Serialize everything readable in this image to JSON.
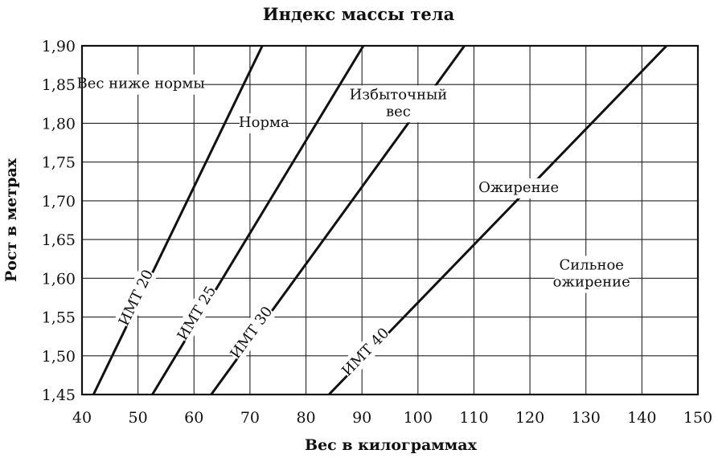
{
  "chart_data": {
    "type": "line",
    "title": "Индекс массы тела",
    "xlabel": "Вес в килограммах",
    "ylabel": "Рост в метрах",
    "xlim": [
      40,
      150
    ],
    "ylim": [
      1.45,
      1.9
    ],
    "x_ticks": [
      "40",
      "50",
      "60",
      "70",
      "80",
      "90",
      "100",
      "110",
      "120",
      "130",
      "140",
      "150"
    ],
    "y_ticks": [
      "1,45",
      "1,50",
      "1,55",
      "1,60",
      "1,65",
      "1,70",
      "1,75",
      "1,80",
      "1,85",
      "1,90"
    ],
    "grid": true,
    "series": [
      {
        "name": "ИМТ 20",
        "bmi": 20
      },
      {
        "name": "ИМТ 25",
        "bmi": 25
      },
      {
        "name": "ИМТ 30",
        "bmi": 30
      },
      {
        "name": "ИМТ 40",
        "bmi": 40
      }
    ],
    "annotations": [
      {
        "lines": [
          "Вес ниже нормы"
        ],
        "x": 50.5,
        "y": 1.85
      },
      {
        "lines": [
          "Норма"
        ],
        "x": 72.5,
        "y": 1.8
      },
      {
        "lines": [
          "Избыточный",
          "вес"
        ],
        "x": 96.5,
        "y": 1.825
      },
      {
        "lines": [
          "Ожирение"
        ],
        "x": 118,
        "y": 1.716
      },
      {
        "lines": [
          "Сильное",
          "ожирение"
        ],
        "x": 131,
        "y": 1.605
      }
    ]
  }
}
